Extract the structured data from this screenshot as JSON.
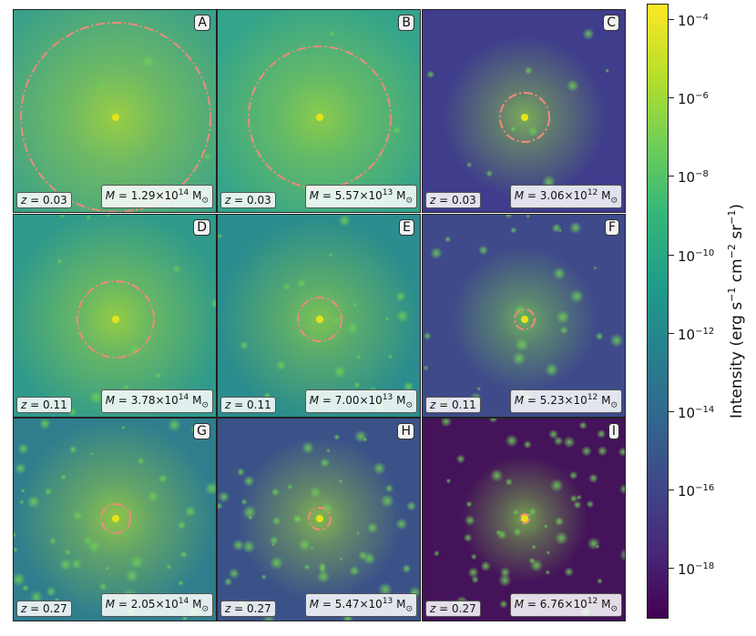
{
  "chart_data": {
    "type": "heatmap",
    "colormap": "viridis",
    "colorbar": {
      "label_prefix": "Intensity (erg s",
      "label_sup1": "−1",
      "label_mid1": " cm",
      "label_sup2": "−2",
      "label_mid2": " sr",
      "label_sup3": "−1",
      "label_suffix": ")",
      "scale": "log",
      "range_exponents": [
        -19.3,
        -3.6
      ],
      "ticks": [
        {
          "exp": -4,
          "text": "−4"
        },
        {
          "exp": -6,
          "text": "−6"
        },
        {
          "exp": -8,
          "text": "−8"
        },
        {
          "exp": -10,
          "text": "−10"
        },
        {
          "exp": -12,
          "text": "−12"
        },
        {
          "exp": -14,
          "text": "−14"
        },
        {
          "exp": -16,
          "text": "−16"
        },
        {
          "exp": -18,
          "text": "−18"
        }
      ],
      "tick_base": "10"
    },
    "panels": [
      {
        "label": "A",
        "z": "0.03",
        "mass_mantissa": "1.29",
        "mass_exp": "14",
        "background": "#3aa08a",
        "core_color": "#b8dd2e"
      },
      {
        "label": "B",
        "z": "0.03",
        "mass_mantissa": "5.57",
        "mass_exp": "13",
        "background": "#34a48a",
        "core_color": "#a8d936"
      },
      {
        "label": "C",
        "z": "0.03",
        "mass_mantissa": "3.06",
        "mass_exp": "12",
        "background": "#3f3d8c",
        "core_color": "#8fd147"
      },
      {
        "label": "D",
        "z": "0.11",
        "mass_mantissa": "3.78",
        "mass_exp": "14",
        "background": "#2f9a8b",
        "core_color": "#b4dd2f"
      },
      {
        "label": "E",
        "z": "0.11",
        "mass_mantissa": "7.00",
        "mass_exp": "13",
        "background": "#2b8d8d",
        "core_color": "#9bd63e"
      },
      {
        "label": "F",
        "z": "0.11",
        "mass_mantissa": "5.23",
        "mass_exp": "12",
        "background": "#3e4a8a",
        "core_color": "#7ccf52"
      },
      {
        "label": "G",
        "z": "0.27",
        "mass_mantissa": "2.05",
        "mass_exp": "14",
        "background": "#2e7e8e",
        "core_color": "#b0dc32"
      },
      {
        "label": "H",
        "z": "0.27",
        "mass_mantissa": "5.47",
        "mass_exp": "13",
        "background": "#3b5289",
        "core_color": "#9ed73c"
      },
      {
        "label": "I",
        "z": "0.27",
        "mass_mantissa": "6.76",
        "mass_exp": "12",
        "background": "#44135a",
        "core_color": "#84d04c"
      }
    ],
    "z_prefix": "z",
    "mass_prefix": "M",
    "mass_unit": "M",
    "mass_unit_sub": "⊙",
    "aperture_circle_color": "#f08a7a"
  }
}
